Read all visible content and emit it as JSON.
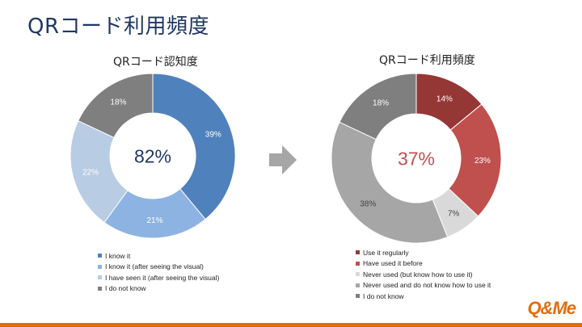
{
  "slide": {
    "title": "QRコード利用頻度",
    "logo": "Q&Me"
  },
  "chart_data": [
    {
      "type": "pie",
      "title": "QRコード認知度",
      "center_label": "82%",
      "center_color": "#1f3864",
      "labels": [
        "I know it",
        "I know it (after seeing the visual)",
        "I have seen it (after seeing the visual)",
        "I do not know"
      ],
      "values": [
        39,
        21,
        22,
        18
      ],
      "value_labels": [
        "39%",
        "21%",
        "22%",
        "18%"
      ],
      "colors": [
        "#4f81bd",
        "#8db3e2",
        "#b8cce4",
        "#7f7f7f"
      ],
      "label_colors": [
        "#ffffff",
        "#ffffff",
        "#ffffff",
        "#ffffff"
      ],
      "legend_position": "bottom"
    },
    {
      "type": "pie",
      "title": "QRコード利用頻度",
      "center_label": "37%",
      "center_color": "#c0504d",
      "labels": [
        "Use it regularly",
        "Have used it before",
        "Never used (but know how to use it)",
        "Never used and do not know how to use it",
        "I do not know"
      ],
      "values": [
        14,
        23,
        7,
        38,
        18
      ],
      "value_labels": [
        "14%",
        "23%",
        "7%",
        "38%",
        "18%"
      ],
      "colors": [
        "#953735",
        "#c0504d",
        "#d9d9d9",
        "#a6a6a6",
        "#7f7f7f"
      ],
      "label_colors": [
        "#ffffff",
        "#ffffff",
        "#444444",
        "#444444",
        "#ffffff"
      ],
      "legend_position": "bottom"
    }
  ]
}
